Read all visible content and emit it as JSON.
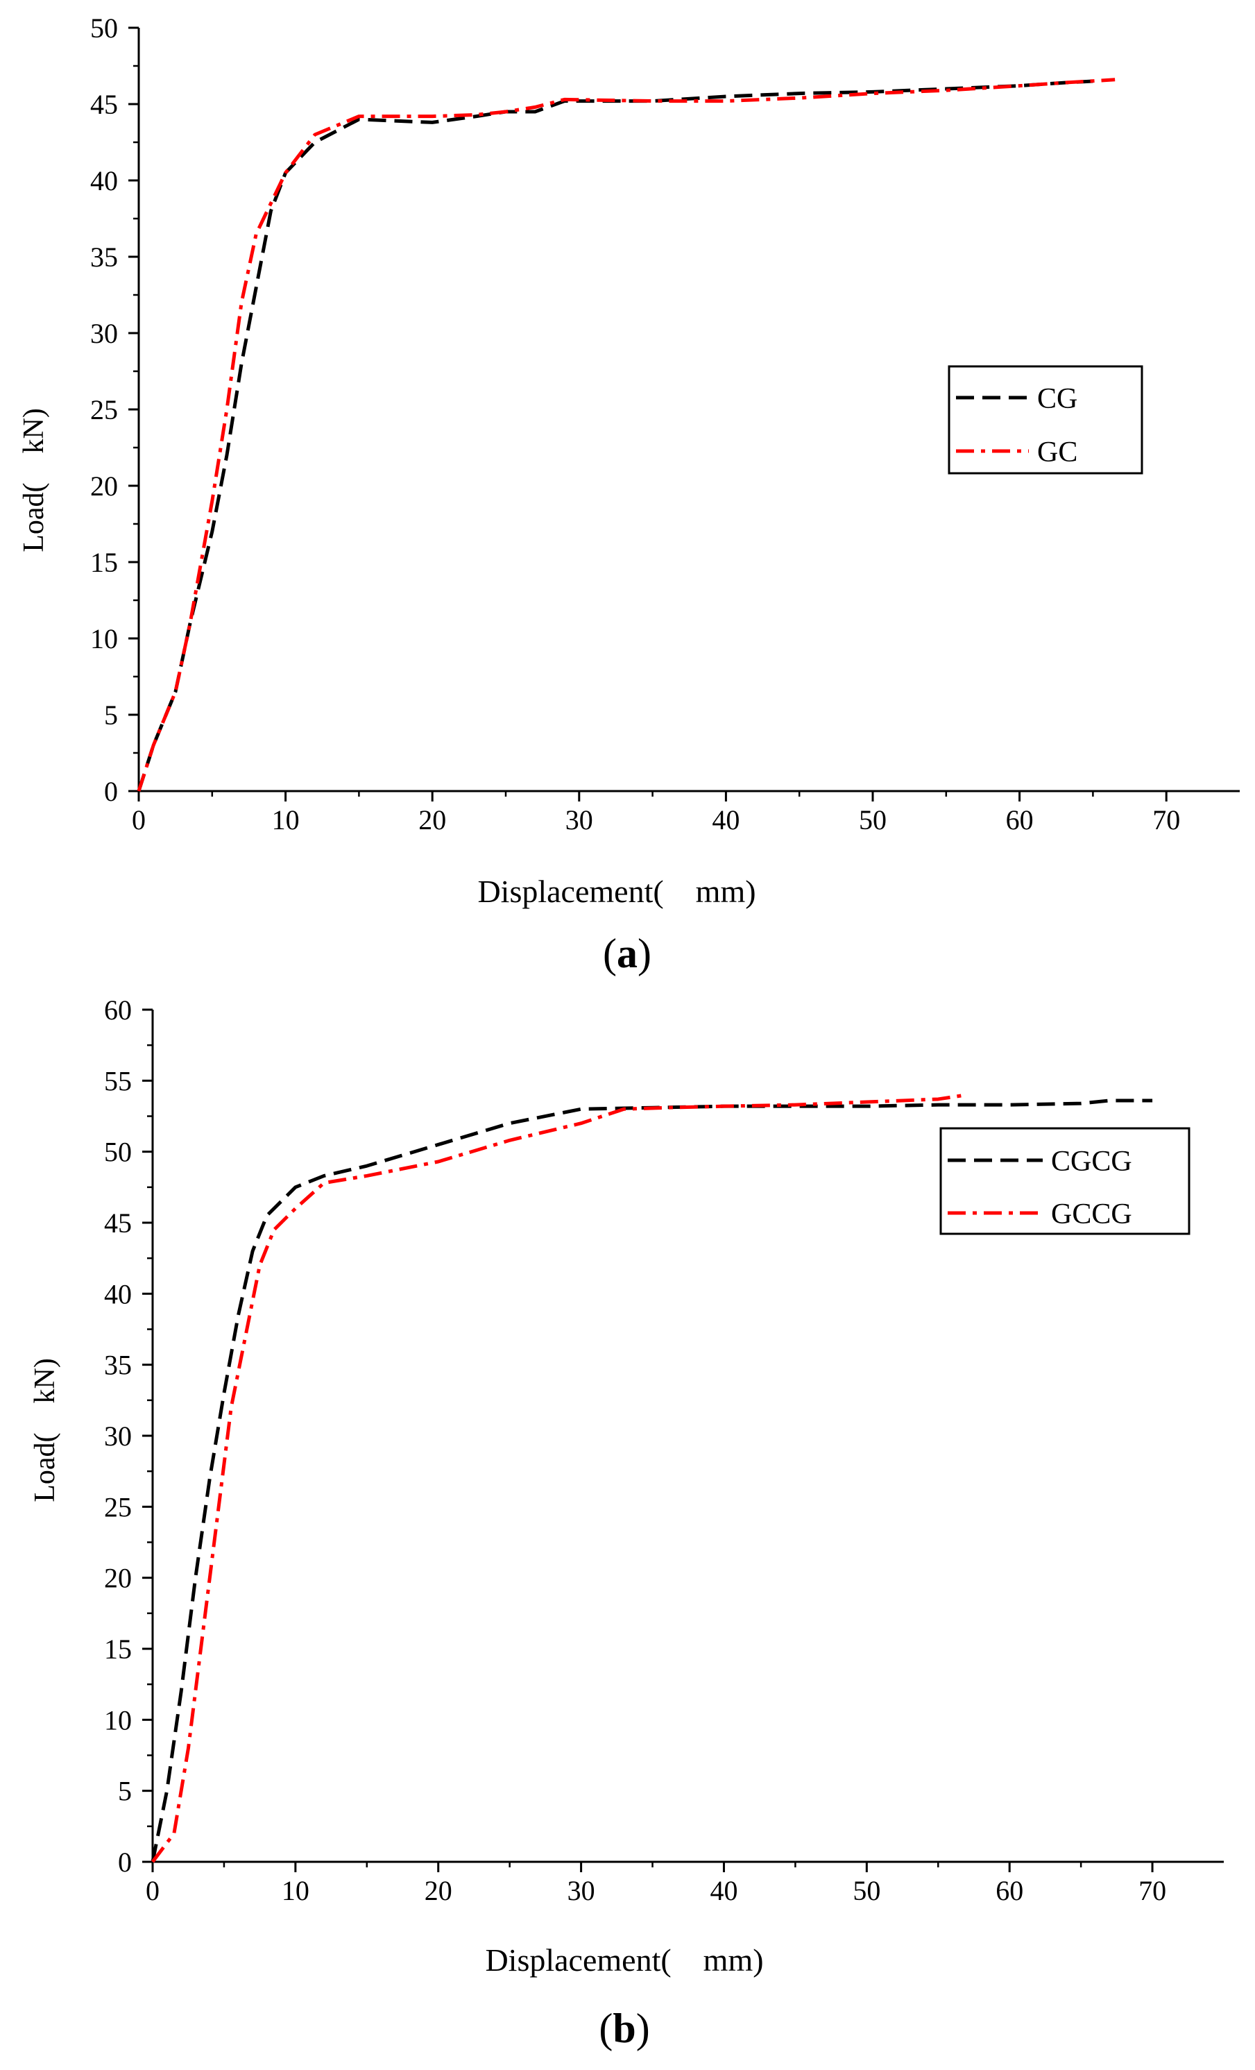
{
  "chart_data": [
    {
      "type": "line",
      "panel_label": "a",
      "xlabel": "Displacement(　mm)",
      "ylabel": "Load(　kN)",
      "xlim": [
        0,
        75
      ],
      "ylim": [
        0,
        50
      ],
      "xticks": [
        0,
        10,
        20,
        30,
        40,
        50,
        60,
        70
      ],
      "yticks": [
        0,
        5,
        10,
        15,
        20,
        25,
        30,
        35,
        40,
        45,
        50
      ],
      "grid": false,
      "legend_position": "right-middle",
      "series": [
        {
          "name": "CG",
          "color": "#000000",
          "style": "dash",
          "x": [
            0,
            1,
            2.5,
            3.5,
            5,
            6,
            7,
            8,
            9,
            10,
            12,
            15,
            20,
            23,
            25,
            27,
            29,
            35,
            40,
            45,
            50,
            55,
            60,
            63,
            65
          ],
          "y": [
            0,
            3,
            6.5,
            11,
            17,
            22,
            28,
            33,
            38,
            40.5,
            42.5,
            44,
            43.8,
            44.2,
            44.5,
            44.5,
            45.2,
            45.2,
            45.5,
            45.7,
            45.8,
            46.0,
            46.2,
            46.4,
            46.5
          ]
        },
        {
          "name": "GC",
          "color": "#ff0000",
          "style": "dashdot",
          "x": [
            0,
            1,
            2.5,
            3.5,
            5,
            6,
            7,
            8,
            9,
            10,
            12,
            15,
            20,
            23,
            25,
            27,
            29,
            35,
            40,
            45,
            50,
            55,
            60,
            63,
            66.5
          ],
          "y": [
            0,
            3,
            6.5,
            11,
            19,
            25,
            32,
            36.5,
            38.5,
            40.5,
            43,
            44.2,
            44.2,
            44.3,
            44.5,
            44.8,
            45.3,
            45.2,
            45.2,
            45.4,
            45.7,
            45.9,
            46.2,
            46.4,
            46.6
          ]
        }
      ]
    },
    {
      "type": "line",
      "panel_label": "b",
      "xlabel": "Displacement(　mm)",
      "ylabel": "Load(　kN)",
      "xlim": [
        0,
        75
      ],
      "ylim": [
        0,
        60
      ],
      "xticks": [
        0,
        10,
        20,
        30,
        40,
        50,
        60,
        70
      ],
      "yticks": [
        0,
        5,
        10,
        15,
        20,
        25,
        30,
        35,
        40,
        45,
        50,
        55,
        60
      ],
      "grid": false,
      "legend_position": "right-middle",
      "series": [
        {
          "name": "CGCG",
          "color": "#000000",
          "style": "dash",
          "x": [
            0,
            1,
            2,
            3,
            4,
            5,
            6,
            7,
            8,
            10,
            12,
            15,
            20,
            25,
            30,
            35,
            40,
            45,
            50,
            55,
            60,
            65,
            67,
            70
          ],
          "y": [
            0,
            5,
            12,
            20,
            27,
            33,
            38.5,
            43,
            45.5,
            47.5,
            48.3,
            49,
            50.5,
            52,
            53,
            53.1,
            53.2,
            53.2,
            53.2,
            53.3,
            53.3,
            53.4,
            53.6,
            53.6
          ]
        },
        {
          "name": "GCCG",
          "color": "#ff0000",
          "style": "dashdot",
          "x": [
            0,
            1.5,
            2.5,
            3.5,
            4.5,
            5.5,
            6.5,
            7.5,
            8.5,
            10,
            12,
            15,
            20,
            25,
            30,
            33,
            36,
            40,
            45,
            50,
            55,
            57
          ],
          "y": [
            0,
            2,
            8,
            16,
            24,
            32,
            37,
            42,
            44.5,
            46,
            47.8,
            48.3,
            49.3,
            50.8,
            52,
            53,
            53.1,
            53.2,
            53.3,
            53.5,
            53.7,
            54
          ]
        }
      ]
    }
  ]
}
